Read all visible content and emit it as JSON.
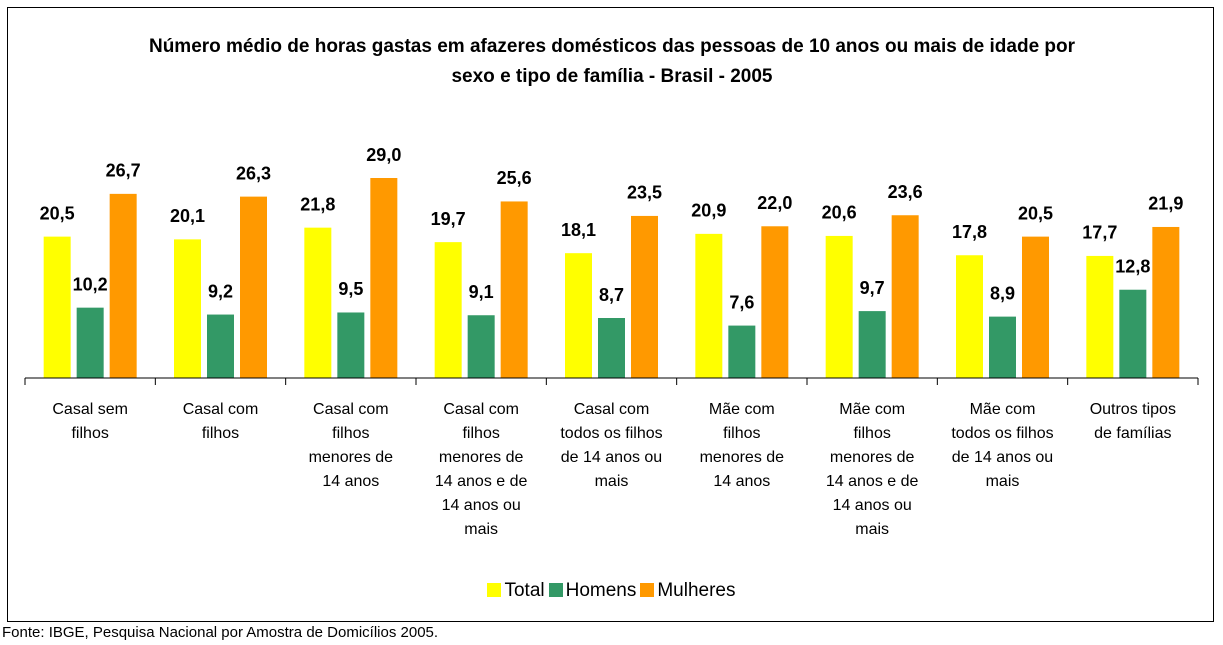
{
  "chart_data": {
    "type": "bar",
    "title": "Número médio de horas gastas em afazeres domésticos das pessoas de 10 anos ou mais de idade por sexo e tipo de família - Brasil - 2005",
    "categories": [
      "Casal sem filhos",
      "Casal com filhos",
      "Casal com filhos menores de 14 anos",
      "Casal com filhos menores de 14 anos e de 14 anos ou mais",
      "Casal com todos os filhos de 14 anos ou mais",
      "Mãe com filhos menores de 14 anos",
      "Mãe com filhos menores de 14 anos e de 14 anos ou mais",
      "Mãe com todos os filhos de 14 anos ou mais",
      "Outros tipos de famílias"
    ],
    "series": [
      {
        "name": "Total",
        "color": "#ffff00",
        "values": [
          20.5,
          20.1,
          21.8,
          19.7,
          18.1,
          20.9,
          20.6,
          17.8,
          17.7
        ],
        "value_labels": [
          "20,5",
          "20,1",
          "21,8",
          "19,7",
          "18,1",
          "20,9",
          "20,6",
          "17,8",
          "17,7"
        ]
      },
      {
        "name": "Homens",
        "color": "#339966",
        "values": [
          10.2,
          9.2,
          9.5,
          9.1,
          8.7,
          7.6,
          9.7,
          8.9,
          12.8
        ],
        "value_labels": [
          "10,2",
          "9,2",
          "9,5",
          "9,1",
          "8,7",
          "7,6",
          "9,7",
          "8,9",
          "12,8"
        ]
      },
      {
        "name": "Mulheres",
        "color": "#ff9900",
        "values": [
          26.7,
          26.3,
          29.0,
          25.6,
          23.5,
          22.0,
          23.6,
          20.5,
          21.9
        ],
        "value_labels": [
          "26,7",
          "26,3",
          "29,0",
          "25,6",
          "23,5",
          "22,0",
          "23,6",
          "20,5",
          "21,9"
        ]
      }
    ],
    "legend": "bottom",
    "source": "Fonte: IBGE, Pesquisa Nacional por Amostra de Domicílios 2005."
  }
}
